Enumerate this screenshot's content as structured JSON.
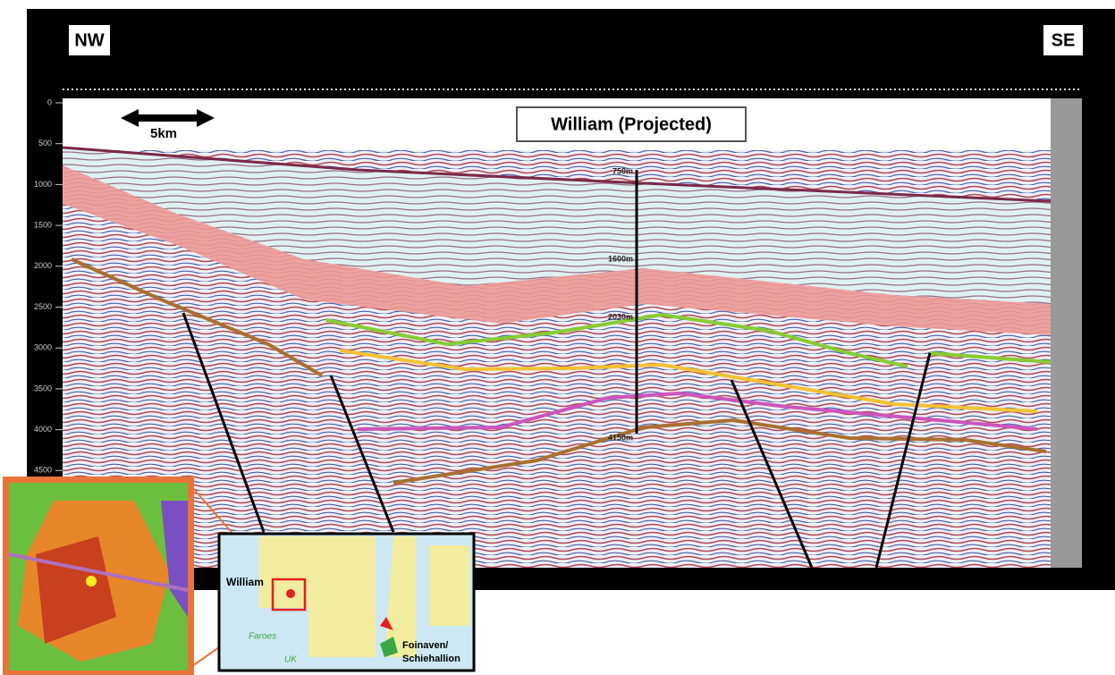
{
  "header": {
    "left": "NW",
    "right": "SE"
  },
  "scale_bar": "5km",
  "well": {
    "label": "William (Projected)",
    "depths": [
      "750m",
      "1600m",
      "2030m",
      "4150m"
    ]
  },
  "depth_axis": {
    "ticks": [
      "0",
      "500",
      "1000",
      "1500",
      "2000",
      "2500",
      "3000",
      "3500",
      "4000",
      "4500"
    ]
  },
  "location_map": {
    "well": "William",
    "labels": [
      "Faroes",
      "UK"
    ],
    "field": [
      "Foinaven/",
      "Schiehallion"
    ]
  }
}
